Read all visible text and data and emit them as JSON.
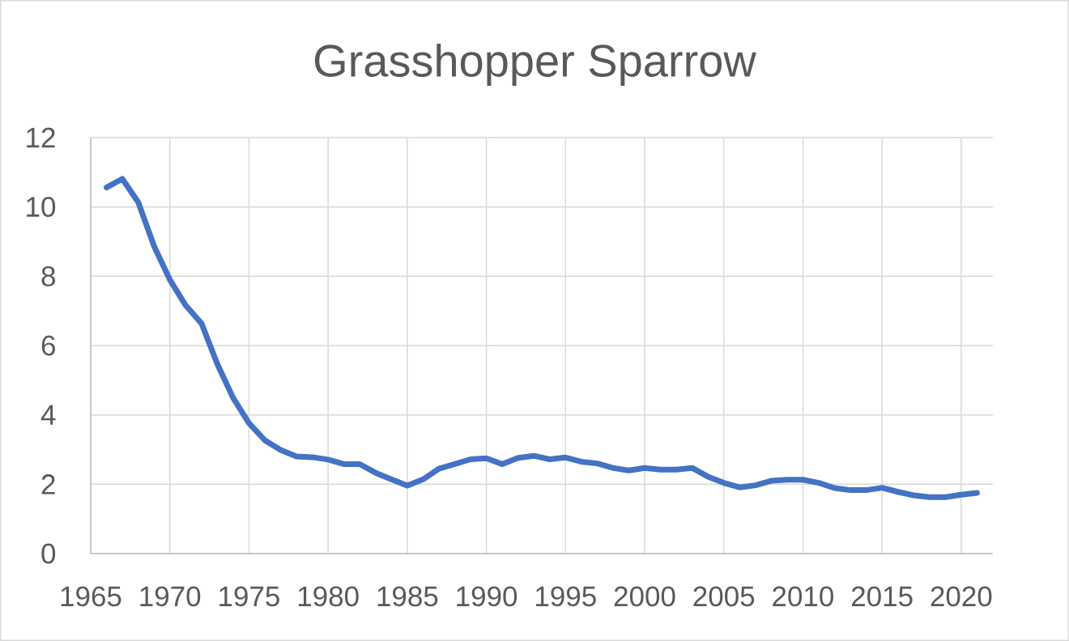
{
  "chart_data": {
    "type": "line",
    "title": "Grasshopper Sparrow",
    "x": [
      1966,
      1967,
      1968,
      1969,
      1970,
      1971,
      1972,
      1973,
      1974,
      1975,
      1976,
      1977,
      1978,
      1979,
      1980,
      1981,
      1982,
      1983,
      1984,
      1985,
      1986,
      1987,
      1988,
      1989,
      1990,
      1991,
      1992,
      1993,
      1994,
      1995,
      1996,
      1997,
      1998,
      1999,
      2000,
      2001,
      2002,
      2003,
      2004,
      2005,
      2006,
      2007,
      2008,
      2009,
      2010,
      2011,
      2012,
      2013,
      2014,
      2015,
      2016,
      2017,
      2018,
      2019,
      2020,
      2021
    ],
    "series": [
      {
        "color": "#4472c4",
        "values": [
          10.56,
          10.81,
          10.14,
          8.87,
          7.9,
          7.16,
          6.64,
          5.47,
          4.49,
          3.76,
          3.27,
          2.99,
          2.8,
          2.78,
          2.71,
          2.58,
          2.58,
          2.33,
          2.14,
          1.96,
          2.14,
          2.45,
          2.58,
          2.72,
          2.75,
          2.58,
          2.76,
          2.82,
          2.72,
          2.77,
          2.65,
          2.6,
          2.47,
          2.4,
          2.47,
          2.42,
          2.42,
          2.47,
          2.22,
          2.04,
          1.91,
          1.97,
          2.1,
          2.13,
          2.13,
          2.04,
          1.89,
          1.83,
          1.83,
          1.9,
          1.78,
          1.68,
          1.63,
          1.63,
          1.7,
          1.75
        ]
      }
    ],
    "xlim": [
      1965,
      2022
    ],
    "ylim": [
      0,
      12
    ],
    "xticks": [
      1965,
      1970,
      1975,
      1980,
      1985,
      1990,
      1995,
      2000,
      2005,
      2010,
      2015,
      2020
    ],
    "yticks": [
      0,
      2,
      4,
      6,
      8,
      10,
      12
    ],
    "grid": true,
    "marker": "none",
    "line_style": "solid"
  }
}
